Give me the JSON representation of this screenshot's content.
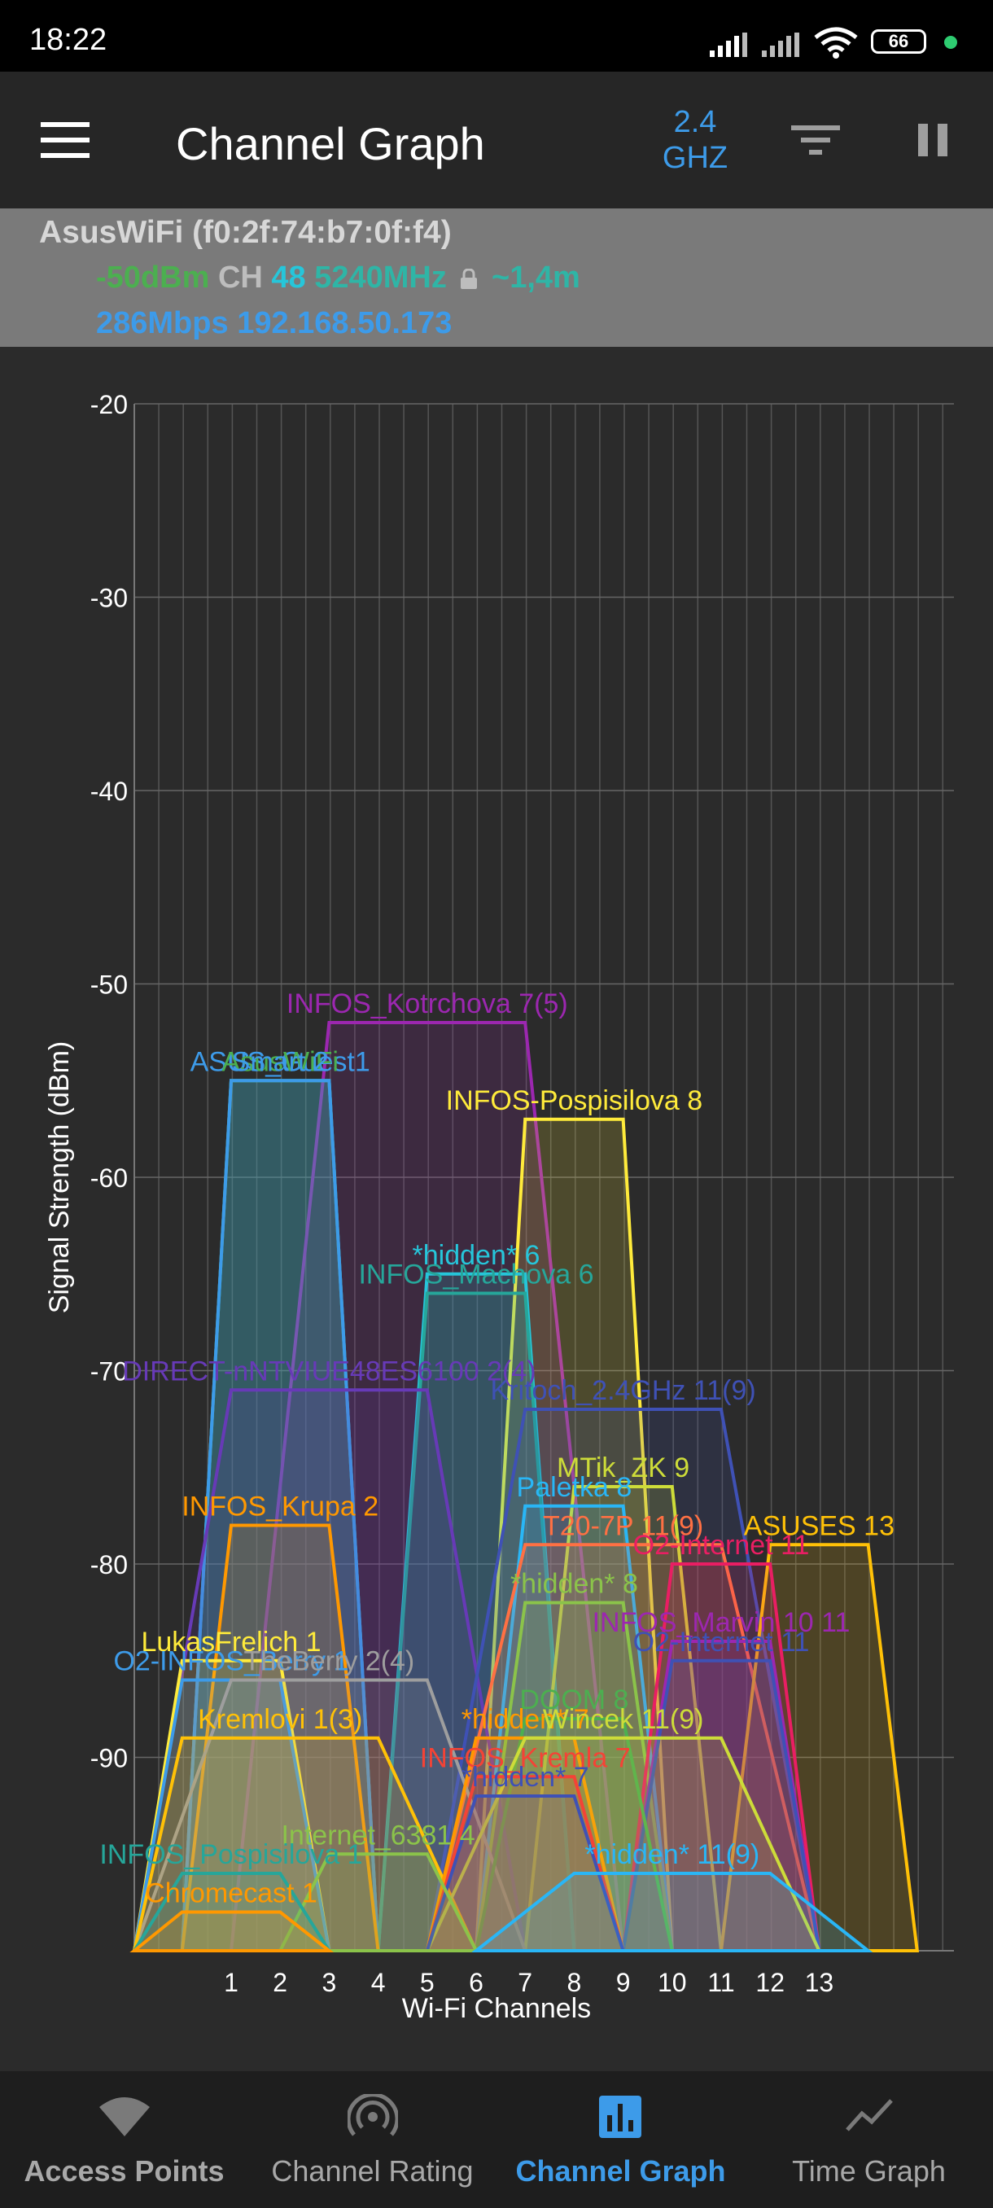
{
  "status": {
    "time": "18:22",
    "battery": "66"
  },
  "appbar": {
    "menu_icon": "hamburger-menu-icon",
    "title": "Channel Graph",
    "band_line1": "2.4",
    "band_line2": "GHZ",
    "filter_icon": "filter-icon",
    "pause_icon": "pause-icon"
  },
  "connection": {
    "name": "AsusWiFi (f0:2f:74:b7:0f:f4)",
    "signal": "-50dBm",
    "ch_label": "CH",
    "channel": "48",
    "frequency": "5240MHz",
    "distance": "~1,4m",
    "speed": "286Mbps",
    "ip": "192.168.50.173"
  },
  "chart_data": {
    "type": "area",
    "ylabel": "Signal Strength (dBm)",
    "xlabel": "Wi-Fi Channels",
    "ylim": [
      -100,
      -20
    ],
    "yticks": [
      "-20",
      "-30",
      "-40",
      "-50",
      "-60",
      "-70",
      "-80",
      "-90"
    ],
    "xticks": [
      "1",
      "2",
      "3",
      "4",
      "5",
      "6",
      "7",
      "8",
      "9",
      "10",
      "11",
      "12",
      "13"
    ],
    "grid": true,
    "networks": [
      {
        "label": "INFOS_Kotrchova 7(5)",
        "channel": 5,
        "width": 40,
        "signal": -52,
        "color": "#9c27b0"
      },
      {
        "label": "ASUS_Guest1",
        "channel": 2,
        "width": 20,
        "signal": -55,
        "color": "#3d9be9"
      },
      {
        "label": "AsusWiFi",
        "channel": 2,
        "width": 20,
        "signal": -55,
        "color": "#4caf50"
      },
      {
        "label": "Smart 2",
        "channel": 2,
        "width": 20,
        "signal": -55,
        "color": "#3d9be9"
      },
      {
        "label": "INFOS-Pospisilova 8",
        "channel": 8,
        "width": 20,
        "signal": -57,
        "color": "#ffeb3b"
      },
      {
        "label": "*hidden* 6",
        "channel": 6,
        "width": 20,
        "signal": -65,
        "color": "#26c6da"
      },
      {
        "label": "INFOS_Machova 6",
        "channel": 6,
        "width": 20,
        "signal": -66,
        "color": "#26a69a"
      },
      {
        "label": "DIRECT-nNTVIUE48ES6100 2(4)",
        "channel": 3,
        "width": 40,
        "signal": -71,
        "color": "#673ab7"
      },
      {
        "label": "Kritoch_2.4GHz 11(9)",
        "channel": 9,
        "width": 40,
        "signal": -72,
        "color": "#3f51b5"
      },
      {
        "label": "MTik_ZK 9",
        "channel": 9,
        "width": 20,
        "signal": -76,
        "color": "#cddc39"
      },
      {
        "label": "Paletka 8",
        "channel": 8,
        "width": 20,
        "signal": -77,
        "color": "#29b6f6"
      },
      {
        "label": "INFOS_Krupa 2",
        "channel": 2,
        "width": 20,
        "signal": -78,
        "color": "#ff9800"
      },
      {
        "label": "T20-7P 11(9)",
        "channel": 9,
        "width": 40,
        "signal": -79,
        "color": "#ff7043"
      },
      {
        "label": "ASUSES 13",
        "channel": 13,
        "width": 20,
        "signal": -79,
        "color": "#ffc107"
      },
      {
        "label": "*hidden* 8",
        "channel": 8,
        "width": 20,
        "signal": -82,
        "color": "#8bc34a"
      },
      {
        "label": "O2-Internet 11",
        "channel": 11,
        "width": 20,
        "signal": -80,
        "color": "#e91e63"
      },
      {
        "label": "INFOS_Marvin 10 11",
        "channel": 11,
        "width": 20,
        "signal": -84,
        "color": "#9c27b0"
      },
      {
        "label": "O2-Internet 11",
        "channel": 11,
        "width": 20,
        "signal": -85,
        "color": "#3f51b5"
      },
      {
        "label": "LukasFrelich 1",
        "channel": 1,
        "width": 20,
        "signal": -85,
        "color": "#ffeb3b"
      },
      {
        "label": "O2-INFOS_Berry 1",
        "channel": 1,
        "width": 20,
        "signal": -86,
        "color": "#3d9be9"
      },
      {
        "label": "TheBerry 2(4)",
        "channel": 3,
        "width": 40,
        "signal": -86,
        "color": "#9e9e9e"
      },
      {
        "label": "DOOM 8",
        "channel": 8,
        "width": 20,
        "signal": -88,
        "color": "#4caf50"
      },
      {
        "label": "Kremlovi 1(3)",
        "channel": 2,
        "width": 40,
        "signal": -89,
        "color": "#ffc107"
      },
      {
        "label": "*hidden* 7",
        "channel": 7,
        "width": 20,
        "signal": -89,
        "color": "#ff9800"
      },
      {
        "label": "Wincek 11(9)",
        "channel": 9,
        "width": 40,
        "signal": -89,
        "color": "#cddc39"
      },
      {
        "label": "INFOS_Kremla 7",
        "channel": 7,
        "width": 20,
        "signal": -91,
        "color": "#f44336"
      },
      {
        "label": "*hidden* 7",
        "channel": 7,
        "width": 20,
        "signal": -92,
        "color": "#3f51b5"
      },
      {
        "label": "Internet_6381 4",
        "channel": 4,
        "width": 20,
        "signal": -95,
        "color": "#8bc34a"
      },
      {
        "label": "INFOS_Pospisilova 1",
        "channel": 1,
        "width": 20,
        "signal": -96,
        "color": "#26a69a"
      },
      {
        "label": "*hidden* 11(9)",
        "channel": 10,
        "width": 40,
        "signal": -96,
        "color": "#29b6f6"
      },
      {
        "label": "Chromecast 1",
        "channel": 1,
        "width": 20,
        "signal": -98,
        "color": "#ff9800"
      }
    ]
  },
  "bottom_nav": [
    {
      "label": "Access Points",
      "icon": "wifi-icon"
    },
    {
      "label": "Channel Rating",
      "icon": "signal-rating-icon"
    },
    {
      "label": "Channel Graph",
      "icon": "bar-chart-icon"
    },
    {
      "label": "Time Graph",
      "icon": "line-graph-icon"
    }
  ]
}
